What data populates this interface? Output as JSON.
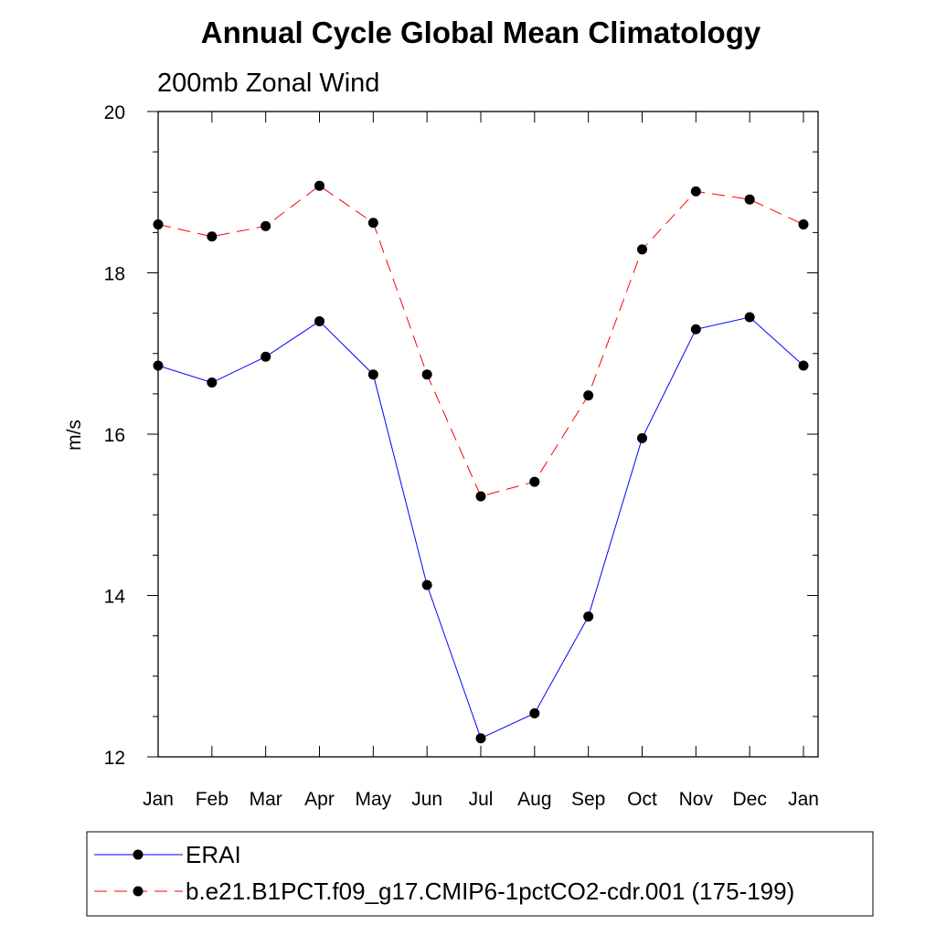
{
  "chart_data": {
    "type": "line",
    "title": "Annual Cycle Global Mean Climatology",
    "subtitle": "200mb Zonal Wind",
    "xlabel": "",
    "ylabel": "m/s",
    "categories": [
      "Jan",
      "Feb",
      "Mar",
      "Apr",
      "May",
      "Jun",
      "Jul",
      "Aug",
      "Sep",
      "Oct",
      "Nov",
      "Dec",
      "Jan"
    ],
    "ylim": [
      12,
      20
    ],
    "yticks": [
      12,
      14,
      16,
      18,
      20
    ],
    "grid": false,
    "legend_position": "bottom",
    "series": [
      {
        "name": "ERAI",
        "color": "#0000ff",
        "dash": "solid",
        "marker": "circle",
        "values": [
          16.85,
          16.64,
          16.96,
          17.4,
          16.74,
          14.13,
          12.23,
          12.54,
          13.74,
          15.95,
          17.3,
          17.45,
          16.85
        ]
      },
      {
        "name": "b.e21.B1PCT.f09_g17.CMIP6-1pctCO2-cdr.001 (175-199)",
        "color": "#ff0000",
        "dash": "dashed",
        "marker": "circle",
        "values": [
          18.6,
          18.45,
          18.58,
          19.08,
          18.62,
          16.74,
          15.23,
          15.41,
          16.48,
          18.29,
          19.01,
          18.91,
          18.6
        ]
      }
    ]
  }
}
